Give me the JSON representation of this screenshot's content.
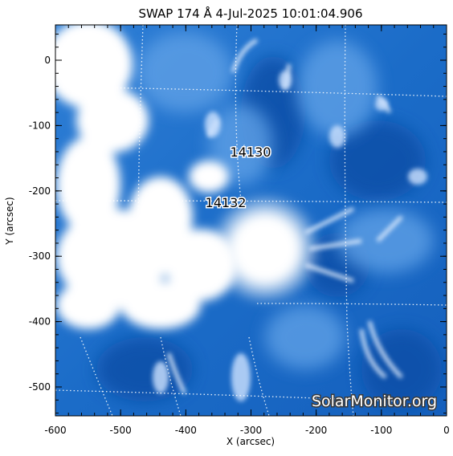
{
  "title": "SWAP 174 Å  4-Jul-2025 10:01:04.906",
  "xlabel": "X (arcsec)",
  "ylabel": "Y (arcsec)",
  "x_ticks": [
    "-600",
    "-500",
    "-400",
    "-300",
    "-200",
    "-100",
    "0"
  ],
  "y_ticks": [
    "0",
    "-100",
    "-200",
    "-300",
    "-400",
    "-500"
  ],
  "regions": [
    {
      "label": "14130"
    },
    {
      "label": "14132"
    }
  ],
  "watermark": "SolarMonitor.org",
  "colors": {
    "frame": "#000000",
    "image_base": "#1565c0",
    "image_bright": "#ffffff",
    "grid": "#ffffff"
  }
}
